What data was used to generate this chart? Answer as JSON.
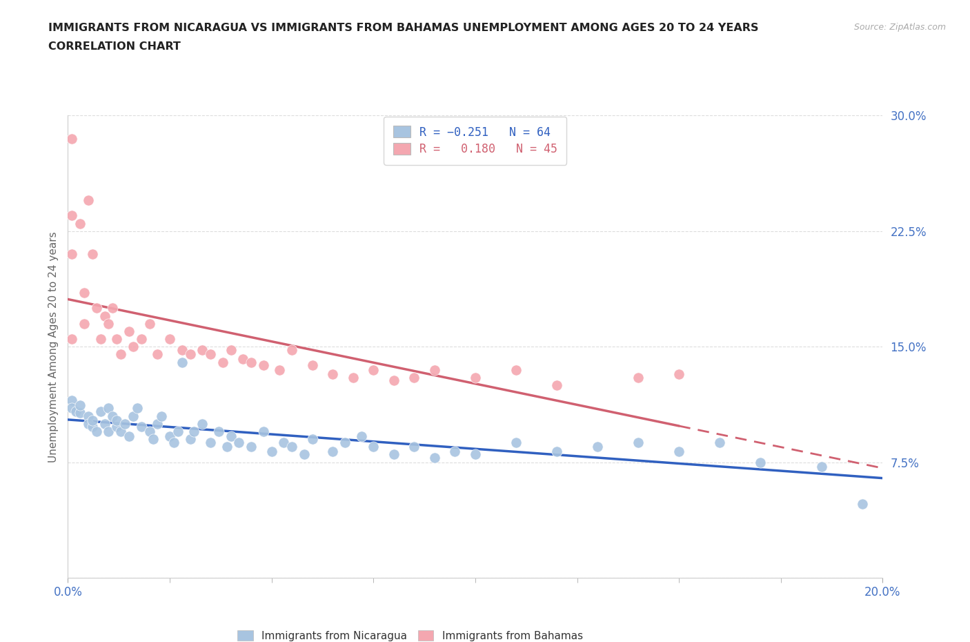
{
  "title_line1": "IMMIGRANTS FROM NICARAGUA VS IMMIGRANTS FROM BAHAMAS UNEMPLOYMENT AMONG AGES 20 TO 24 YEARS",
  "title_line2": "CORRELATION CHART",
  "source_text": "Source: ZipAtlas.com",
  "ylabel": "Unemployment Among Ages 20 to 24 years",
  "xlim": [
    0.0,
    0.2
  ],
  "ylim": [
    0.0,
    0.3
  ],
  "yticks": [
    0.0,
    0.075,
    0.15,
    0.225,
    0.3
  ],
  "ytick_labels": [
    "",
    "7.5%",
    "15.0%",
    "22.5%",
    "30.0%"
  ],
  "nicaragua_color": "#a8c4e0",
  "bahamas_color": "#f4a7b0",
  "trendline_nicaragua_color": "#3060c0",
  "trendline_bahamas_color": "#d06070",
  "r_nicaragua": -0.251,
  "n_nicaragua": 64,
  "r_bahamas": 0.18,
  "n_bahamas": 45,
  "nicaragua_x": [
    0.001,
    0.001,
    0.002,
    0.003,
    0.003,
    0.005,
    0.005,
    0.006,
    0.006,
    0.007,
    0.008,
    0.009,
    0.01,
    0.01,
    0.011,
    0.012,
    0.012,
    0.013,
    0.014,
    0.015,
    0.016,
    0.017,
    0.018,
    0.02,
    0.021,
    0.022,
    0.023,
    0.025,
    0.026,
    0.027,
    0.028,
    0.03,
    0.031,
    0.033,
    0.035,
    0.037,
    0.039,
    0.04,
    0.042,
    0.045,
    0.048,
    0.05,
    0.053,
    0.055,
    0.058,
    0.06,
    0.065,
    0.068,
    0.072,
    0.075,
    0.08,
    0.085,
    0.09,
    0.095,
    0.1,
    0.11,
    0.12,
    0.13,
    0.14,
    0.15,
    0.16,
    0.17,
    0.185,
    0.195
  ],
  "nicaragua_y": [
    0.115,
    0.11,
    0.108,
    0.107,
    0.112,
    0.105,
    0.1,
    0.098,
    0.102,
    0.095,
    0.108,
    0.1,
    0.095,
    0.11,
    0.105,
    0.098,
    0.102,
    0.095,
    0.1,
    0.092,
    0.105,
    0.11,
    0.098,
    0.095,
    0.09,
    0.1,
    0.105,
    0.092,
    0.088,
    0.095,
    0.14,
    0.09,
    0.095,
    0.1,
    0.088,
    0.095,
    0.085,
    0.092,
    0.088,
    0.085,
    0.095,
    0.082,
    0.088,
    0.085,
    0.08,
    0.09,
    0.082,
    0.088,
    0.092,
    0.085,
    0.08,
    0.085,
    0.078,
    0.082,
    0.08,
    0.088,
    0.082,
    0.085,
    0.088,
    0.082,
    0.088,
    0.075,
    0.072,
    0.048
  ],
  "bahamas_x": [
    0.001,
    0.001,
    0.001,
    0.001,
    0.003,
    0.004,
    0.004,
    0.005,
    0.006,
    0.007,
    0.008,
    0.009,
    0.01,
    0.011,
    0.012,
    0.013,
    0.015,
    0.016,
    0.018,
    0.02,
    0.022,
    0.025,
    0.028,
    0.03,
    0.033,
    0.035,
    0.038,
    0.04,
    0.043,
    0.045,
    0.048,
    0.052,
    0.055,
    0.06,
    0.065,
    0.07,
    0.075,
    0.08,
    0.085,
    0.09,
    0.1,
    0.11,
    0.12,
    0.14,
    0.15
  ],
  "bahamas_y": [
    0.285,
    0.235,
    0.21,
    0.155,
    0.23,
    0.185,
    0.165,
    0.245,
    0.21,
    0.175,
    0.155,
    0.17,
    0.165,
    0.175,
    0.155,
    0.145,
    0.16,
    0.15,
    0.155,
    0.165,
    0.145,
    0.155,
    0.148,
    0.145,
    0.148,
    0.145,
    0.14,
    0.148,
    0.142,
    0.14,
    0.138,
    0.135,
    0.148,
    0.138,
    0.132,
    0.13,
    0.135,
    0.128,
    0.13,
    0.135,
    0.13,
    0.135,
    0.125,
    0.13,
    0.132
  ],
  "background_color": "#ffffff",
  "grid_color": "#dddddd",
  "title_color": "#222222",
  "tick_label_color": "#4472c4"
}
